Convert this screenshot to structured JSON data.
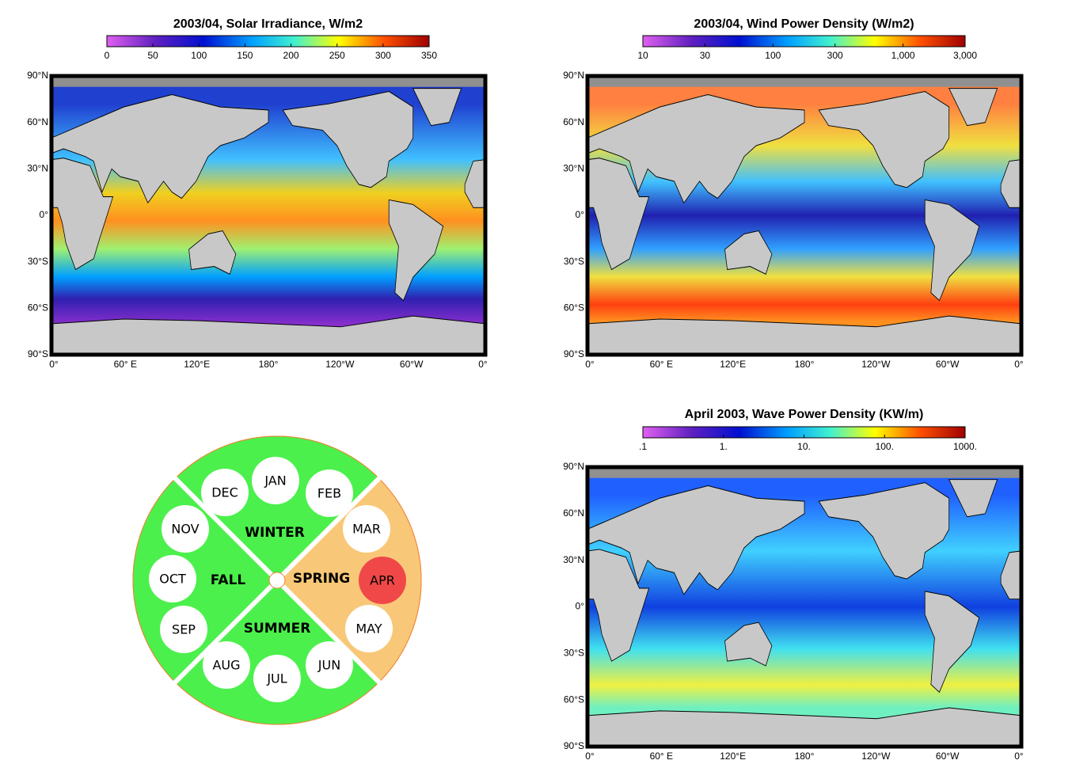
{
  "maps": [
    {
      "title": "2003/04, Solar Irradiance, W/m2",
      "colorbar": {
        "log": false,
        "range": [
          0,
          350
        ],
        "ticks": [
          0,
          50,
          100,
          150,
          200,
          250,
          300,
          350
        ]
      },
      "lat_labels": [
        "90°N",
        "60°N",
        "30°N",
        "0°",
        "30°S",
        "60°S",
        "90°S"
      ],
      "lon_labels": [
        "0°",
        "60° E",
        "120°E",
        "180°",
        "120°W",
        "60°W",
        "0°"
      ]
    },
    {
      "title": "2003/04, Wind Power Density (W/m2)",
      "colorbar": {
        "log": true,
        "range": [
          10,
          3000
        ],
        "ticks": [
          10,
          30,
          100,
          300,
          {
            "value": 1000,
            "label": "1,000"
          },
          {
            "value": 3000,
            "label": "3,000"
          }
        ]
      },
      "lat_labels": [
        "90°N",
        "60°N",
        "30°N",
        "0°",
        "30°S",
        "60°S",
        "90°S"
      ],
      "lon_labels": [
        "0°",
        "60° E",
        "120°E",
        "180°",
        "120°W",
        "60°W",
        "0°"
      ]
    },
    {
      "title": "April 2003, Wave Power Density (KW/m)",
      "colorbar": {
        "log": true,
        "range": [
          0.1,
          1000
        ],
        "ticks": [
          {
            "value": 0.1,
            "label": ".1"
          },
          {
            "value": 1,
            "label": "1."
          },
          {
            "value": 10,
            "label": "10."
          },
          {
            "value": 100,
            "label": "100."
          },
          {
            "value": 1000,
            "label": "1000."
          }
        ]
      },
      "lat_labels": [
        "90°N",
        "60°N",
        "30°N",
        "0°",
        "30°S",
        "60°S",
        "90°S"
      ],
      "lon_labels": [
        "0°",
        "60° E",
        "120°E",
        "180°",
        "120°W",
        "60°W",
        "0°"
      ]
    }
  ],
  "calendar": {
    "seasons": [
      {
        "name": "WINTER",
        "color": "#4cf04c"
      },
      {
        "name": "SPRING",
        "color": "#f8c878"
      },
      {
        "name": "SUMMER",
        "color": "#4cf04c"
      },
      {
        "name": "FALL",
        "color": "#4cf04c"
      }
    ],
    "months": [
      {
        "label": "DEC",
        "color": "#ffffff"
      },
      {
        "label": "JAN",
        "color": "#ffffff"
      },
      {
        "label": "FEB",
        "color": "#ffffff"
      },
      {
        "label": "MAR",
        "color": "#ffffff"
      },
      {
        "label": "APR",
        "color": "#f04848"
      },
      {
        "label": "MAY",
        "color": "#ffffff"
      },
      {
        "label": "JUN",
        "color": "#ffffff"
      },
      {
        "label": "JUL",
        "color": "#ffffff"
      },
      {
        "label": "AUG",
        "color": "#ffffff"
      },
      {
        "label": "SEP",
        "color": "#ffffff"
      },
      {
        "label": "OCT",
        "color": "#ffffff"
      },
      {
        "label": "NOV",
        "color": "#ffffff"
      }
    ]
  }
}
